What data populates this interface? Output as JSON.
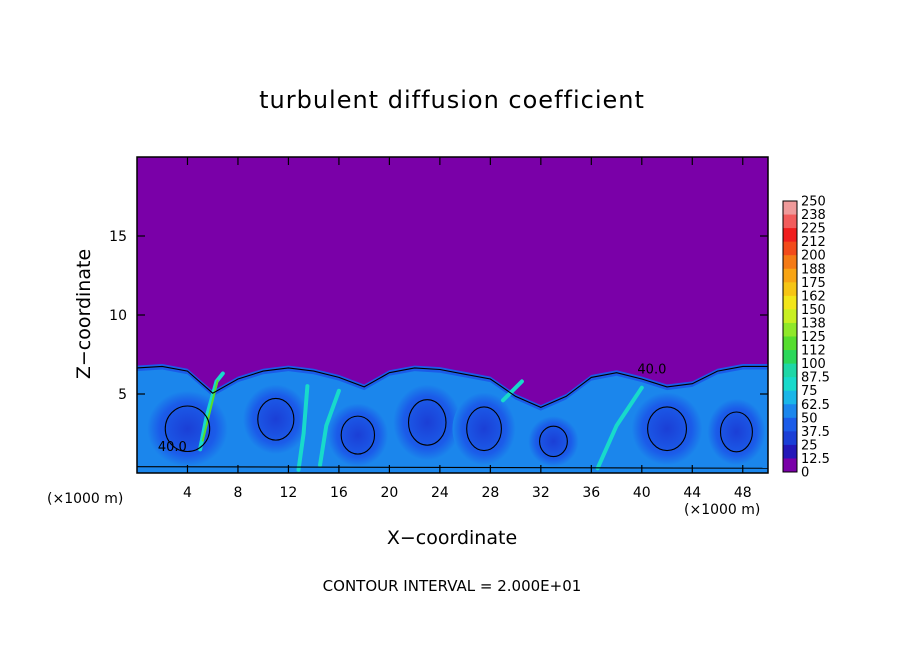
{
  "chart_data": {
    "type": "heatmap",
    "title": "turbulent diffusion coefficient",
    "xlabel": "X−coordinate",
    "ylabel": "Z−coordinate",
    "x_unit_left": "(×1000 m)",
    "x_unit_right": "(×1000 m)",
    "footnote": "CONTOUR INTERVAL = 2.000E+01",
    "xlim": [
      0,
      50
    ],
    "ylim": [
      0,
      20
    ],
    "x_ticks": [
      4,
      8,
      12,
      16,
      20,
      24,
      28,
      32,
      36,
      40,
      44,
      48
    ],
    "y_ticks": [
      5,
      10,
      15
    ],
    "contour_labels": [
      {
        "text": "40.0",
        "x": 2.8,
        "z": 1.4
      },
      {
        "text": "40.0",
        "x": 40.8,
        "z": 6.3
      }
    ],
    "colorbar": {
      "levels": [
        "250",
        "238",
        "225",
        "212",
        "200",
        "188",
        "175",
        "162",
        "150",
        "138",
        "125",
        "112",
        "100",
        "87.5",
        "75",
        "62.5",
        "50",
        "37.5",
        "25",
        "12.5",
        "0"
      ],
      "colors": [
        "#ef9a9a",
        "#f25c5c",
        "#f01d1d",
        "#f24a1a",
        "#f47a15",
        "#f8a414",
        "#f6c515",
        "#f2e61a",
        "#c8ef22",
        "#8fe82a",
        "#56dd2e",
        "#2bd75a",
        "#1ed7a6",
        "#18dacb",
        "#1ab6e8",
        "#1b86ec",
        "#1b5ce9",
        "#1b3fd6",
        "#2418b8",
        "#7a00a8"
      ]
    },
    "field_description_range": [
      0,
      250
    ],
    "top_background_value": 0,
    "boundary_layer_top_km": 7
  }
}
